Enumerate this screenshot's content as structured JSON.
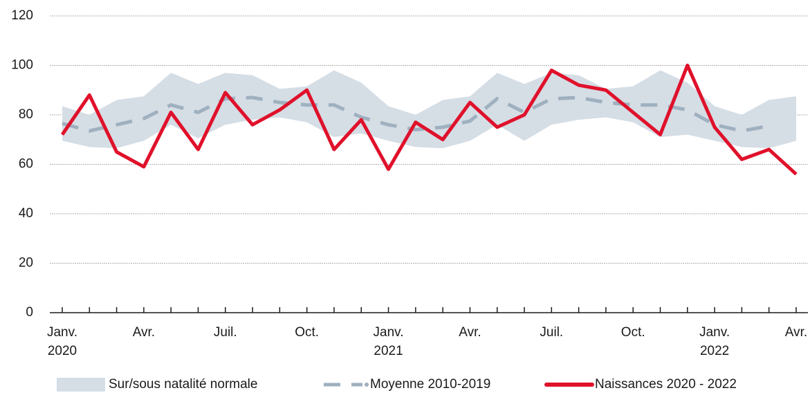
{
  "chart_data": {
    "type": "line",
    "categories": [
      "Janv. 2020",
      null,
      null,
      "Avr.",
      null,
      null,
      "Juil.",
      null,
      null,
      "Oct.",
      null,
      null,
      "Janv. 2021",
      null,
      null,
      "Avr.",
      null,
      null,
      "Juil.",
      null,
      null,
      "Oct.",
      null,
      null,
      "Janv. 2022",
      null,
      null,
      "Avr."
    ],
    "series": [
      {
        "name": "Sur/sous natalité normale",
        "type": "band",
        "color": "#d5dde5",
        "values": [
          83.5,
          80,
          86,
          87.5,
          97,
          92.5,
          97,
          96,
          90.5,
          91.5,
          98,
          93,
          83.5,
          80,
          86,
          87.5,
          97,
          92.5,
          97,
          96,
          90.5,
          91.5,
          98,
          93,
          83.5,
          80,
          86,
          87.5
        ],
        "lower": [
          69.5,
          67,
          66.5,
          69.5,
          76,
          70.5,
          76,
          78,
          79,
          77,
          71,
          72.5,
          69.5,
          67,
          66.5,
          69.5,
          76,
          69.5,
          76,
          78,
          79,
          77,
          71,
          72,
          69.5,
          67,
          66.5,
          69.5
        ]
      },
      {
        "name": "Moyenne 2010-2019",
        "type": "dashed",
        "color": "#9fb0bf",
        "values": [
          76.5,
          73.5,
          76,
          78.5,
          84,
          81,
          86.5,
          87,
          85,
          84,
          84,
          79,
          76,
          74,
          75,
          77.5,
          86.5,
          81,
          86.5,
          87,
          85,
          84,
          84,
          82,
          76,
          73.5,
          75.5,
          null
        ]
      },
      {
        "name": "Naissances 2020 - 2022",
        "type": "solid",
        "color": "#e0112b",
        "values": [
          72,
          88,
          65,
          59,
          81,
          66,
          89,
          76,
          82,
          90,
          66,
          78,
          58,
          77,
          70,
          85,
          75,
          80,
          98,
          92,
          90,
          81,
          72,
          100,
          75,
          62,
          66,
          56
        ]
      }
    ],
    "ylim": [
      0,
      120
    ],
    "yticks": [
      0,
      20,
      40,
      60,
      80,
      100,
      120
    ],
    "grid": true,
    "legend": "bottom"
  }
}
